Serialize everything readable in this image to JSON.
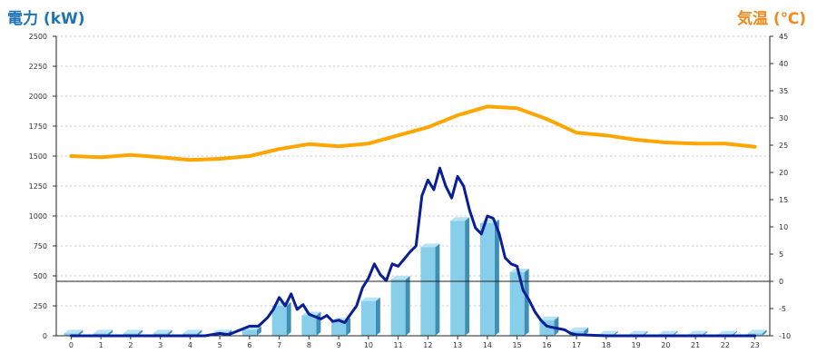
{
  "chart_data": {
    "type": "bar+line",
    "left_axis": {
      "label": "電力 (kW)",
      "min": 0,
      "max": 2500,
      "ticks": [
        0,
        250,
        500,
        750,
        1000,
        1250,
        1500,
        1750,
        2000,
        2250,
        2500
      ],
      "color": "#1e73b4"
    },
    "right_axis": {
      "label": "気温 (℃)",
      "min": -10,
      "max": 45,
      "ticks": [
        -10,
        -5,
        0,
        5,
        10,
        15,
        20,
        25,
        30,
        35,
        40,
        45
      ],
      "color": "#f08a1c"
    },
    "x_axis": {
      "categories": [
        "0",
        "1",
        "2",
        "3",
        "4",
        "5",
        "6",
        "7",
        "8",
        "9",
        "10",
        "11",
        "12",
        "13",
        "14",
        "15",
        "16",
        "17",
        "18",
        "19",
        "20",
        "21",
        "22",
        "23"
      ]
    },
    "grid": true,
    "series": [
      {
        "kind": "bar",
        "axis": "left",
        "color": "#87ceeb",
        "values": [
          20,
          20,
          20,
          20,
          20,
          20,
          50,
          250,
          170,
          120,
          290,
          470,
          740,
          960,
          940,
          530,
          130,
          40,
          10,
          10,
          10,
          10,
          10,
          20
        ]
      },
      {
        "kind": "line",
        "axis": "left",
        "color": "#0a1e96",
        "x": [
          0,
          1,
          2,
          3,
          4,
          4.5,
          5,
          5.3,
          5.6,
          6,
          6.3,
          6.6,
          6.8,
          7,
          7.2,
          7.4,
          7.6,
          7.8,
          8,
          8.2,
          8.4,
          8.6,
          8.8,
          9,
          9.2,
          9.4,
          9.6,
          9.8,
          10,
          10.2,
          10.4,
          10.6,
          10.8,
          11,
          11.2,
          11.4,
          11.6,
          11.8,
          12,
          12.2,
          12.4,
          12.6,
          12.8,
          13,
          13.2,
          13.4,
          13.6,
          13.8,
          14,
          14.2,
          14.4,
          14.6,
          14.8,
          15,
          15.2,
          15.4,
          15.6,
          15.8,
          16,
          16.2,
          16.4,
          16.6,
          16.8,
          17,
          18,
          19,
          20,
          21,
          22,
          23
        ],
        "values": [
          0,
          0,
          0,
          0,
          0,
          0,
          20,
          10,
          40,
          80,
          80,
          150,
          220,
          320,
          250,
          350,
          220,
          260,
          180,
          160,
          140,
          170,
          120,
          130,
          110,
          180,
          250,
          400,
          480,
          600,
          510,
          460,
          600,
          580,
          640,
          700,
          750,
          1170,
          1300,
          1220,
          1400,
          1250,
          1150,
          1330,
          1250,
          1050,
          900,
          850,
          1000,
          980,
          850,
          650,
          600,
          580,
          380,
          300,
          200,
          130,
          80,
          70,
          60,
          50,
          20,
          10,
          0,
          0,
          0,
          0,
          0,
          0
        ]
      },
      {
        "kind": "line",
        "axis": "right",
        "color": "#ffa500",
        "x": [
          0,
          1,
          2,
          3,
          4,
          5,
          6,
          7,
          8,
          9,
          10,
          11,
          12,
          13,
          14,
          15,
          16,
          17,
          18,
          19,
          20,
          21,
          22,
          23
        ],
        "values": [
          23,
          22.8,
          23.2,
          22.8,
          22.3,
          22.5,
          23,
          24.3,
          25.2,
          24.8,
          25.3,
          26.8,
          28.3,
          30.5,
          32.1,
          31.8,
          29.8,
          27.3,
          26.8,
          26,
          25.5,
          25.3,
          25.3,
          24.7
        ]
      }
    ]
  }
}
